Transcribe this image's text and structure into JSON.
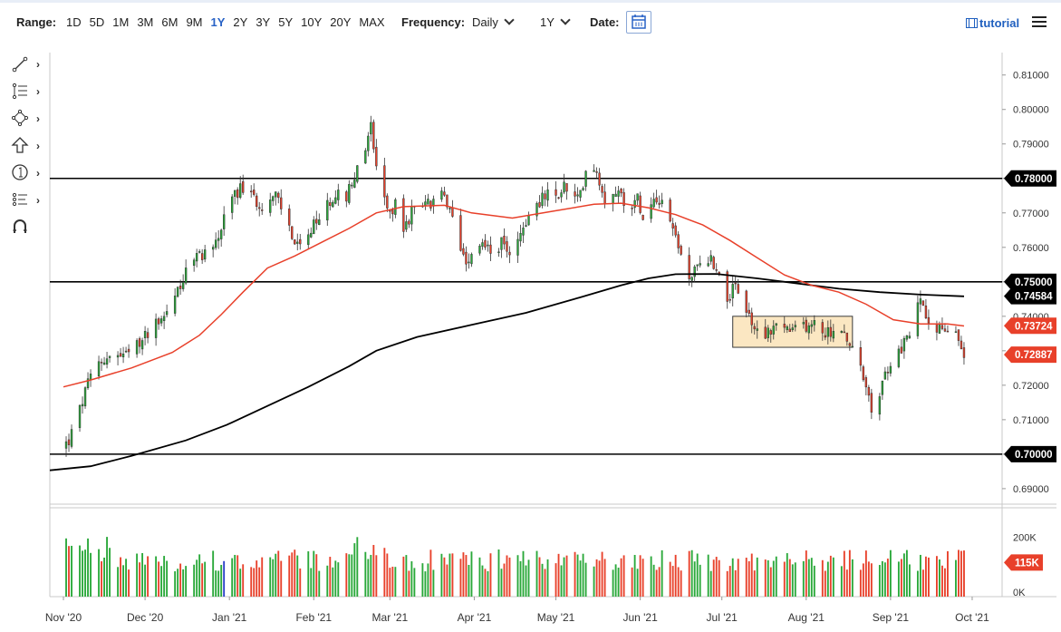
{
  "toolbar": {
    "range_label": "Range:",
    "ranges": [
      "1D",
      "5D",
      "1M",
      "3M",
      "6M",
      "9M",
      "1Y",
      "2Y",
      "3Y",
      "5Y",
      "10Y",
      "20Y",
      "MAX"
    ],
    "active_range": "1Y",
    "frequency_label": "Frequency:",
    "frequency_value": "Daily",
    "period_value": "1Y",
    "date_label": "Date:",
    "tutorial_label": "tutorial"
  },
  "drawing_tools": [
    "line-tool-icon",
    "fib-tool-icon",
    "shape-tool-icon",
    "arrow-tool-icon",
    "annotation-tool-icon",
    "pattern-tool-icon",
    "magnet-tool-icon"
  ],
  "chart_data": {
    "type": "candlestick",
    "instrument": "",
    "x_ticks": [
      "Nov '20",
      "Dec '20",
      "Jan '21",
      "Feb '21",
      "Mar '21",
      "Apr '21",
      "May '21",
      "Jun '21",
      "Jul '21",
      "Aug '21",
      "Sep '21",
      "Oct '21"
    ],
    "x_tick_days": [
      0,
      30,
      61,
      92,
      120,
      151,
      181,
      212,
      242,
      273,
      304,
      334
    ],
    "x_range_days": [
      -5,
      345
    ],
    "y_ticks": [
      "0.81000",
      "0.80000",
      "0.79000",
      "0.78000",
      "0.77000",
      "0.76000",
      "0.75000",
      "0.74000",
      "0.73000",
      "0.72000",
      "0.71000",
      "0.70000",
      "0.69000"
    ],
    "ylim": [
      0.6855,
      0.8165
    ],
    "horizontal_levels": [
      0.78,
      0.75,
      0.7
    ],
    "consolidation_box": {
      "start_day": 246,
      "end_day": 290,
      "low": 0.731,
      "high": 0.74
    },
    "close_series": [
      [
        0,
        0.702
      ],
      [
        2,
        0.704
      ],
      [
        5,
        0.71
      ],
      [
        8,
        0.718
      ],
      [
        12,
        0.726
      ],
      [
        16,
        0.728
      ],
      [
        20,
        0.728
      ],
      [
        24,
        0.729
      ],
      [
        28,
        0.732
      ],
      [
        32,
        0.737
      ],
      [
        36,
        0.74
      ],
      [
        39,
        0.742
      ],
      [
        42,
        0.748
      ],
      [
        46,
        0.754
      ],
      [
        50,
        0.758
      ],
      [
        54,
        0.759
      ],
      [
        57,
        0.763
      ],
      [
        60,
        0.77
      ],
      [
        63,
        0.776
      ],
      [
        66,
        0.777
      ],
      [
        70,
        0.774
      ],
      [
        74,
        0.772
      ],
      [
        78,
        0.775
      ],
      [
        82,
        0.768
      ],
      [
        85,
        0.761
      ],
      [
        88,
        0.759
      ],
      [
        92,
        0.766
      ],
      [
        96,
        0.771
      ],
      [
        100,
        0.776
      ],
      [
        103,
        0.773
      ],
      [
        106,
        0.78
      ],
      [
        110,
        0.785
      ],
      [
        113,
        0.796
      ],
      [
        114,
        0.79
      ],
      [
        116,
        0.778
      ],
      [
        119,
        0.771
      ],
      [
        122,
        0.772
      ],
      [
        125,
        0.765
      ],
      [
        128,
        0.77
      ],
      [
        132,
        0.774
      ],
      [
        135,
        0.772
      ],
      [
        138,
        0.777
      ],
      [
        142,
        0.77
      ],
      [
        145,
        0.763
      ],
      [
        148,
        0.756
      ],
      [
        151,
        0.761
      ],
      [
        155,
        0.761
      ],
      [
        158,
        0.758
      ],
      [
        161,
        0.761
      ],
      [
        164,
        0.759
      ],
      [
        168,
        0.764
      ],
      [
        171,
        0.769
      ],
      [
        174,
        0.773
      ],
      [
        178,
        0.775
      ],
      [
        181,
        0.774
      ],
      [
        184,
        0.778
      ],
      [
        187,
        0.773
      ],
      [
        190,
        0.775
      ],
      [
        193,
        0.787
      ],
      [
        196,
        0.782
      ],
      [
        199,
        0.774
      ],
      [
        202,
        0.777
      ],
      [
        205,
        0.775
      ],
      [
        208,
        0.772
      ],
      [
        211,
        0.774
      ],
      [
        214,
        0.768
      ],
      [
        217,
        0.775
      ],
      [
        220,
        0.774
      ],
      [
        223,
        0.768
      ],
      [
        226,
        0.761
      ],
      [
        229,
        0.75
      ],
      [
        232,
        0.753
      ],
      [
        235,
        0.756
      ],
      [
        238,
        0.757
      ],
      [
        241,
        0.752
      ],
      [
        244,
        0.746
      ],
      [
        247,
        0.748
      ],
      [
        250,
        0.744
      ],
      [
        253,
        0.738
      ],
      [
        256,
        0.734
      ],
      [
        259,
        0.736
      ],
      [
        262,
        0.737
      ],
      [
        265,
        0.737
      ],
      [
        268,
        0.735
      ],
      [
        271,
        0.738
      ],
      [
        274,
        0.737
      ],
      [
        277,
        0.738
      ],
      [
        280,
        0.735
      ],
      [
        283,
        0.736
      ],
      [
        286,
        0.735
      ],
      [
        289,
        0.732
      ],
      [
        292,
        0.727
      ],
      [
        295,
        0.719
      ],
      [
        297,
        0.712
      ],
      [
        300,
        0.718
      ],
      [
        303,
        0.725
      ],
      [
        306,
        0.728
      ],
      [
        309,
        0.732
      ],
      [
        312,
        0.737
      ],
      [
        315,
        0.745
      ],
      [
        317,
        0.741
      ],
      [
        320,
        0.738
      ],
      [
        323,
        0.736
      ],
      [
        326,
        0.735
      ],
      [
        329,
        0.734
      ],
      [
        331,
        0.729
      ]
    ],
    "sma_50": [
      [
        0,
        0.7195
      ],
      [
        10,
        0.7215
      ],
      [
        25,
        0.725
      ],
      [
        40,
        0.7295
      ],
      [
        50,
        0.7345
      ],
      [
        58,
        0.7405
      ],
      [
        66,
        0.747
      ],
      [
        75,
        0.754
      ],
      [
        85,
        0.7575
      ],
      [
        95,
        0.7615
      ],
      [
        105,
        0.7655
      ],
      [
        115,
        0.77
      ],
      [
        125,
        0.7718
      ],
      [
        140,
        0.7722
      ],
      [
        150,
        0.77
      ],
      [
        165,
        0.7685
      ],
      [
        180,
        0.7705
      ],
      [
        195,
        0.7725
      ],
      [
        205,
        0.7728
      ],
      [
        215,
        0.7715
      ],
      [
        225,
        0.7695
      ],
      [
        235,
        0.7665
      ],
      [
        245,
        0.762
      ],
      [
        255,
        0.757
      ],
      [
        265,
        0.752
      ],
      [
        275,
        0.749
      ],
      [
        285,
        0.747
      ],
      [
        295,
        0.7435
      ],
      [
        305,
        0.739
      ],
      [
        315,
        0.7378
      ],
      [
        325,
        0.7378
      ],
      [
        331,
        0.7372
      ]
    ],
    "sma_200": [
      [
        -5,
        0.6953
      ],
      [
        10,
        0.6965
      ],
      [
        25,
        0.6995
      ],
      [
        45,
        0.704
      ],
      [
        60,
        0.7085
      ],
      [
        75,
        0.714
      ],
      [
        90,
        0.7195
      ],
      [
        105,
        0.7255
      ],
      [
        115,
        0.73
      ],
      [
        130,
        0.734
      ],
      [
        150,
        0.7375
      ],
      [
        170,
        0.741
      ],
      [
        190,
        0.7455
      ],
      [
        205,
        0.749
      ],
      [
        215,
        0.751
      ],
      [
        225,
        0.7522
      ],
      [
        240,
        0.7523
      ],
      [
        255,
        0.751
      ],
      [
        270,
        0.7495
      ],
      [
        285,
        0.748
      ],
      [
        300,
        0.747
      ],
      [
        315,
        0.7463
      ],
      [
        331,
        0.7458
      ]
    ],
    "price_labels": [
      {
        "text": "0.78000",
        "value": 0.78,
        "style": "black"
      },
      {
        "text": "0.75000",
        "value": 0.75,
        "style": "black"
      },
      {
        "text": "0.74584",
        "value": 0.74584,
        "style": "black"
      },
      {
        "text": "0.73724",
        "value": 0.73724,
        "style": "red"
      },
      {
        "text": "0.72887",
        "value": 0.72887,
        "style": "red"
      },
      {
        "text": "0.70000",
        "value": 0.7,
        "style": "black"
      }
    ],
    "volume": {
      "ticks": [
        "200K",
        "0K"
      ],
      "tick_values": [
        200000,
        0
      ],
      "ylim": [
        0,
        300000
      ],
      "last_label": "115K",
      "last_value": 115000
    },
    "colors": {
      "up": "#29a839",
      "down": "#e8402a",
      "sma_50": "#e8402a",
      "sma_200": "#000000",
      "level_line": "#000000",
      "box_fill": "#fbe7c2",
      "box_stroke": "#3a3a3a",
      "highlight_volume": "#2b3fc9"
    }
  }
}
